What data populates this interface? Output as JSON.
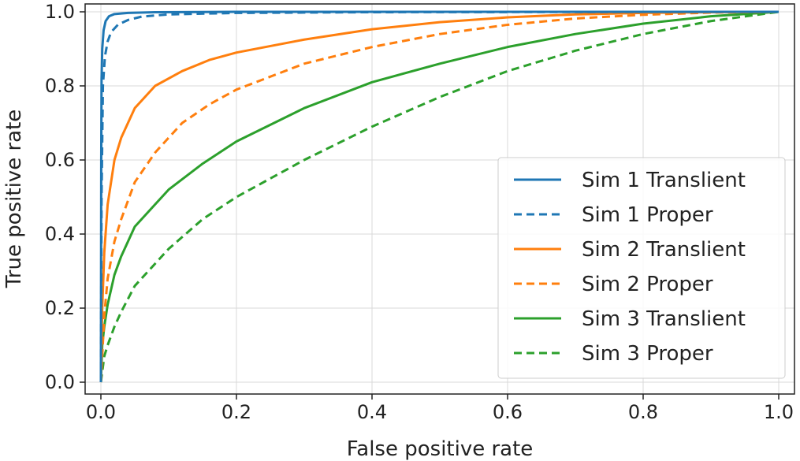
{
  "chart_data": {
    "type": "line",
    "title": "",
    "xlabel": "False positive rate",
    "ylabel": "True positive rate",
    "xlim": [
      0.0,
      1.0
    ],
    "ylim": [
      0.0,
      1.0
    ],
    "xticks": [
      "0.0",
      "0.2",
      "0.4",
      "0.6",
      "0.8",
      "1.0"
    ],
    "yticks": [
      "0.0",
      "0.2",
      "0.4",
      "0.6",
      "0.8",
      "1.0"
    ],
    "grid": true,
    "legend_position": "lower-right",
    "series": [
      {
        "name": "Sim 1 Translient",
        "color": "#1f77b4",
        "dashed": false,
        "points": [
          [
            0,
            0
          ],
          [
            0.0005,
            0.6
          ],
          [
            0.001,
            0.82
          ],
          [
            0.002,
            0.9
          ],
          [
            0.004,
            0.95
          ],
          [
            0.007,
            0.975
          ],
          [
            0.012,
            0.988
          ],
          [
            0.02,
            0.994
          ],
          [
            0.04,
            0.997
          ],
          [
            0.08,
            0.999
          ],
          [
            0.2,
            1.0
          ],
          [
            1,
            1
          ]
        ]
      },
      {
        "name": "Sim 1 Proper",
        "color": "#1f77b4",
        "dashed": true,
        "points": [
          [
            0,
            0
          ],
          [
            0.001,
            0.5
          ],
          [
            0.003,
            0.8
          ],
          [
            0.006,
            0.88
          ],
          [
            0.01,
            0.92
          ],
          [
            0.015,
            0.945
          ],
          [
            0.025,
            0.965
          ],
          [
            0.04,
            0.978
          ],
          [
            0.06,
            0.987
          ],
          [
            0.1,
            0.993
          ],
          [
            0.2,
            0.997
          ],
          [
            0.4,
            0.999
          ],
          [
            1,
            1
          ]
        ]
      },
      {
        "name": "Sim 2 Translient",
        "color": "#ff7f0e",
        "dashed": false,
        "points": [
          [
            0,
            0
          ],
          [
            0.002,
            0.2
          ],
          [
            0.005,
            0.35
          ],
          [
            0.01,
            0.48
          ],
          [
            0.02,
            0.6
          ],
          [
            0.03,
            0.66
          ],
          [
            0.05,
            0.74
          ],
          [
            0.08,
            0.8
          ],
          [
            0.12,
            0.84
          ],
          [
            0.16,
            0.87
          ],
          [
            0.2,
            0.89
          ],
          [
            0.3,
            0.925
          ],
          [
            0.4,
            0.953
          ],
          [
            0.5,
            0.972
          ],
          [
            0.6,
            0.985
          ],
          [
            0.7,
            0.993
          ],
          [
            0.8,
            0.997
          ],
          [
            0.9,
            0.999
          ],
          [
            1,
            1
          ]
        ]
      },
      {
        "name": "Sim 2 Proper",
        "color": "#ff7f0e",
        "dashed": true,
        "points": [
          [
            0,
            0
          ],
          [
            0.005,
            0.18
          ],
          [
            0.01,
            0.28
          ],
          [
            0.02,
            0.38
          ],
          [
            0.03,
            0.44
          ],
          [
            0.05,
            0.54
          ],
          [
            0.08,
            0.62
          ],
          [
            0.12,
            0.7
          ],
          [
            0.16,
            0.75
          ],
          [
            0.2,
            0.79
          ],
          [
            0.3,
            0.86
          ],
          [
            0.4,
            0.905
          ],
          [
            0.5,
            0.94
          ],
          [
            0.6,
            0.965
          ],
          [
            0.7,
            0.982
          ],
          [
            0.8,
            0.992
          ],
          [
            0.9,
            0.998
          ],
          [
            1,
            1
          ]
        ]
      },
      {
        "name": "Sim 3 Translient",
        "color": "#2ca02c",
        "dashed": false,
        "points": [
          [
            0,
            0
          ],
          [
            0.002,
            0.1
          ],
          [
            0.005,
            0.15
          ],
          [
            0.01,
            0.21
          ],
          [
            0.02,
            0.29
          ],
          [
            0.03,
            0.34
          ],
          [
            0.05,
            0.42
          ],
          [
            0.08,
            0.48
          ],
          [
            0.1,
            0.52
          ],
          [
            0.15,
            0.59
          ],
          [
            0.2,
            0.65
          ],
          [
            0.3,
            0.74
          ],
          [
            0.4,
            0.81
          ],
          [
            0.5,
            0.86
          ],
          [
            0.6,
            0.905
          ],
          [
            0.7,
            0.94
          ],
          [
            0.8,
            0.968
          ],
          [
            0.9,
            0.988
          ],
          [
            1,
            1
          ]
        ]
      },
      {
        "name": "Sim 3 Proper",
        "color": "#2ca02c",
        "dashed": true,
        "points": [
          [
            0,
            0
          ],
          [
            0.005,
            0.07
          ],
          [
            0.01,
            0.1
          ],
          [
            0.02,
            0.15
          ],
          [
            0.03,
            0.19
          ],
          [
            0.05,
            0.26
          ],
          [
            0.08,
            0.32
          ],
          [
            0.1,
            0.36
          ],
          [
            0.15,
            0.44
          ],
          [
            0.2,
            0.5
          ],
          [
            0.3,
            0.6
          ],
          [
            0.4,
            0.69
          ],
          [
            0.5,
            0.77
          ],
          [
            0.6,
            0.84
          ],
          [
            0.7,
            0.895
          ],
          [
            0.8,
            0.94
          ],
          [
            0.9,
            0.975
          ],
          [
            1,
            1
          ]
        ]
      }
    ]
  }
}
